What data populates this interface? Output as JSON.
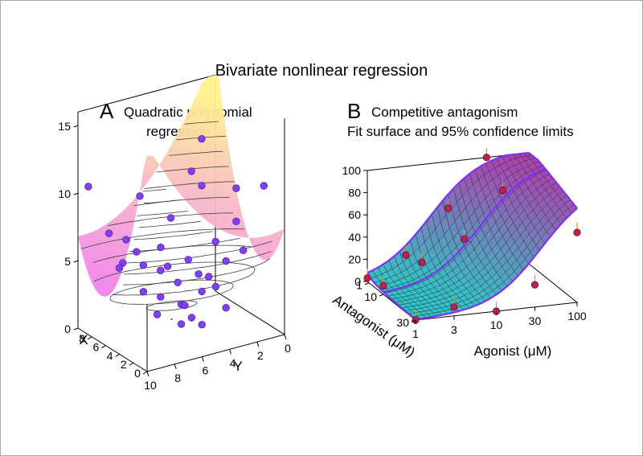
{
  "title": "Bivariate nonlinear regression",
  "panel_a": {
    "letter": "A",
    "title_line1": "Quadratic polynomial",
    "title_line2": "regression"
  },
  "panel_b": {
    "letter": "B",
    "title_line1": "Competitive antagonism",
    "title_line2": "Fit surface and 95% confidence limits"
  },
  "colors": {
    "surface_a_low": "#f08cf0",
    "surface_a_high": "#fff08c",
    "points_a": "#8040f0",
    "surface_b_low": "#30d0d0",
    "surface_b_high": "#b040b0",
    "confidence_lines": "#8030f0",
    "points_b": "#c02050",
    "error_bars": "#f09020"
  },
  "chart_data": [
    {
      "type": "scatter",
      "subtype": "3d-surface",
      "title": "Quadratic polynomial regression",
      "xlabel": "X",
      "ylabel": "Y",
      "zlabel": "",
      "x_ticks": [
        "0",
        "2",
        "4",
        "6",
        "8"
      ],
      "y_ticks": [
        "0",
        "2",
        "4",
        "6",
        "8",
        "10"
      ],
      "z_ticks": [
        "0",
        "5",
        "10",
        "15"
      ],
      "xlim": [
        0,
        10
      ],
      "ylim": [
        0,
        10
      ],
      "zlim": [
        0,
        16
      ],
      "grid": true,
      "points": [
        {
          "x": 9.5,
          "y": 9.5,
          "z": 10.5
        },
        {
          "x": 2,
          "y": 0.5,
          "z": 10.5
        },
        {
          "x": 5,
          "y": 1,
          "z": 9.5
        },
        {
          "x": 7.5,
          "y": 3,
          "z": 10.5
        },
        {
          "x": 4,
          "y": 1.5,
          "z": 7.5
        },
        {
          "x": 6,
          "y": 2,
          "z": 5.5
        },
        {
          "x": 1.2,
          "y": 2.4,
          "z": 6.5
        },
        {
          "x": 7.5,
          "y": 6.5,
          "z": 4.5
        },
        {
          "x": 8,
          "y": 7.5,
          "z": 6.5
        },
        {
          "x": 6.5,
          "y": 7,
          "z": 3
        },
        {
          "x": 6,
          "y": 6,
          "z": 2.5
        },
        {
          "x": 5,
          "y": 5,
          "z": 2
        },
        {
          "x": 4,
          "y": 4,
          "z": 3
        },
        {
          "x": 5.5,
          "y": 6.5,
          "z": 1.5
        },
        {
          "x": 3.5,
          "y": 5,
          "z": 1.5
        },
        {
          "x": 2.5,
          "y": 3,
          "z": 2
        },
        {
          "x": 3,
          "y": 4.5,
          "z": 1
        },
        {
          "x": 4,
          "y": 5.5,
          "z": 1
        },
        {
          "x": 6.5,
          "y": 4.5,
          "z": 3
        },
        {
          "x": 2,
          "y": 4,
          "z": 4
        },
        {
          "x": 1.5,
          "y": 5.5,
          "z": 5.5
        },
        {
          "x": 3,
          "y": 7,
          "z": 6
        },
        {
          "x": 2,
          "y": 8,
          "z": 8
        },
        {
          "x": 4.5,
          "y": 8.5,
          "z": 7
        },
        {
          "x": 5.5,
          "y": 9,
          "z": 6
        },
        {
          "x": 7,
          "y": 5.5,
          "z": 4
        },
        {
          "x": 8.5,
          "y": 4,
          "z": 7
        },
        {
          "x": 1,
          "y": 6.5,
          "z": 7
        },
        {
          "x": 9,
          "y": 6,
          "z": 9
        },
        {
          "x": 3.5,
          "y": 2.5,
          "z": 5
        },
        {
          "x": 5,
          "y": 3,
          "z": 3.5
        },
        {
          "x": 7,
          "y": 8.5,
          "z": 5
        },
        {
          "x": 8,
          "y": 2,
          "z": 9
        },
        {
          "x": 2.5,
          "y": 6,
          "z": 3
        },
        {
          "x": 6.5,
          "y": 9.5,
          "z": 8
        },
        {
          "x": 9,
          "y": 1.5,
          "z": 12
        }
      ]
    },
    {
      "type": "scatter",
      "subtype": "3d-surface",
      "title": "Competitive antagonism",
      "subtitle": "Fit surface and 95% confidence limits",
      "xlabel": "Agonist (μM)",
      "ylabel": "Antagonist (μM)",
      "zlabel": "",
      "x_ticks": [
        "1",
        "3",
        "10",
        "30",
        "100"
      ],
      "y_ticks": [
        "1",
        "10",
        "30"
      ],
      "z_ticks": [
        "0",
        "20",
        "40",
        "60",
        "80",
        "100"
      ],
      "x_scale": "log",
      "xlim": [
        1,
        100
      ],
      "ylim": [
        0,
        30
      ],
      "zlim": [
        0,
        100
      ],
      "grid": true,
      "points": [
        {
          "agonist": 1,
          "antagonist": 0,
          "response": 3
        },
        {
          "agonist": 3,
          "antagonist": 0,
          "response": 20
        },
        {
          "agonist": 10,
          "antagonist": 0,
          "response": 58
        },
        {
          "agonist": 30,
          "antagonist": 0,
          "response": 100
        },
        {
          "agonist": 1,
          "antagonist": 10,
          "response": 8
        },
        {
          "agonist": 3,
          "antagonist": 10,
          "response": 25
        },
        {
          "agonist": 10,
          "antagonist": 10,
          "response": 42
        },
        {
          "agonist": 30,
          "antagonist": 10,
          "response": 82
        },
        {
          "agonist": 3,
          "antagonist": 30,
          "response": 8
        },
        {
          "agonist": 10,
          "antagonist": 30,
          "response": 0
        },
        {
          "agonist": 30,
          "antagonist": 30,
          "response": 20
        },
        {
          "agonist": 100,
          "antagonist": 30,
          "response": 63
        },
        {
          "agonist": 1,
          "antagonist": 30,
          "response": 0
        }
      ]
    }
  ]
}
